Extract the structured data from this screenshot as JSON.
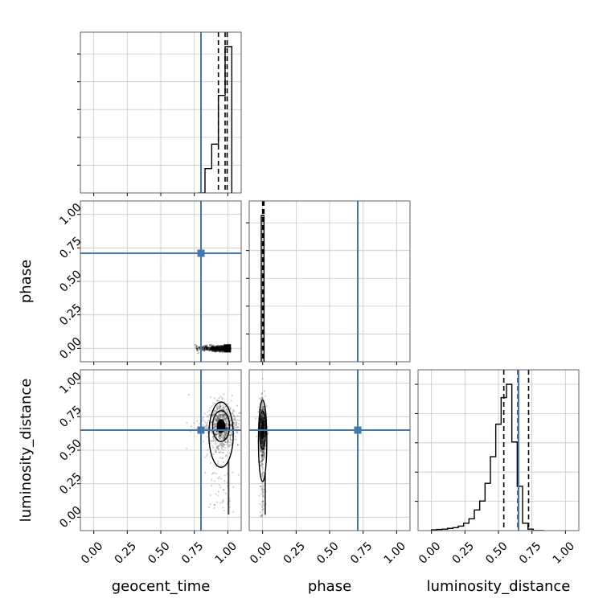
{
  "chart_data": {
    "type": "corner",
    "parameters": [
      "geocent_time",
      "phase",
      "luminosity_distance"
    ],
    "tick_labels": [
      "0.00",
      "0.25",
      "0.50",
      "0.75",
      "1.00"
    ],
    "axis_range": [
      -0.1,
      1.1
    ],
    "grid": true,
    "truth_color": "#4477aa",
    "truths": {
      "geocent_time": 0.8,
      "phase": 0.71,
      "luminosity_distance": 0.65
    },
    "diagonal": [
      {
        "parameter": "geocent_time",
        "bin_edges": [
          0.78,
          0.805,
          0.83,
          0.855,
          0.88,
          0.905,
          0.93,
          0.955,
          0.98,
          1.005,
          1.03
        ],
        "counts": [
          0,
          0,
          1,
          1,
          2,
          2,
          4,
          4,
          6,
          6
        ],
        "quantiles": [
          0.93,
          0.98,
          0.995
        ]
      },
      {
        "parameter": "phase",
        "bin_edges": [
          -0.02,
          -0.01,
          0.0,
          0.01,
          0.02
        ],
        "counts": [
          0,
          1,
          1,
          0
        ],
        "quantiles": [
          0.0,
          0.005,
          0.01
        ]
      },
      {
        "parameter": "luminosity_distance",
        "bin_edges": [
          0.0,
          0.04,
          0.08,
          0.12,
          0.16,
          0.2,
          0.24,
          0.28,
          0.32,
          0.36,
          0.4,
          0.44,
          0.48,
          0.52,
          0.56,
          0.6,
          0.64,
          0.68,
          0.72,
          0.76,
          0.8,
          0.84
        ],
        "counts": [
          0.005,
          0.008,
          0.01,
          0.015,
          0.02,
          0.03,
          0.05,
          0.08,
          0.14,
          0.2,
          0.32,
          0.5,
          0.72,
          0.9,
          0.99,
          0.6,
          0.3,
          0.05,
          0.01,
          0.0,
          0.0
        ],
        "quantiles": [
          0.54,
          0.645,
          0.725
        ]
      }
    ],
    "offdiagonal": [
      {
        "x": "geocent_time",
        "y": "phase",
        "cluster": {
          "x_range": [
            0.75,
            1.02
          ],
          "y_center": 0.0,
          "y_spread": 0.01
        }
      },
      {
        "x": "geocent_time",
        "y": "luminosity_distance",
        "cluster": {
          "x_center": 0.95,
          "x_spread": 0.05,
          "y_center": 0.68,
          "y_spread": 0.08
        }
      },
      {
        "x": "phase",
        "y": "luminosity_distance",
        "cluster": {
          "x_center": 0.0,
          "x_spread": 0.01,
          "y_center": 0.65,
          "y_spread": 0.1
        }
      }
    ]
  }
}
